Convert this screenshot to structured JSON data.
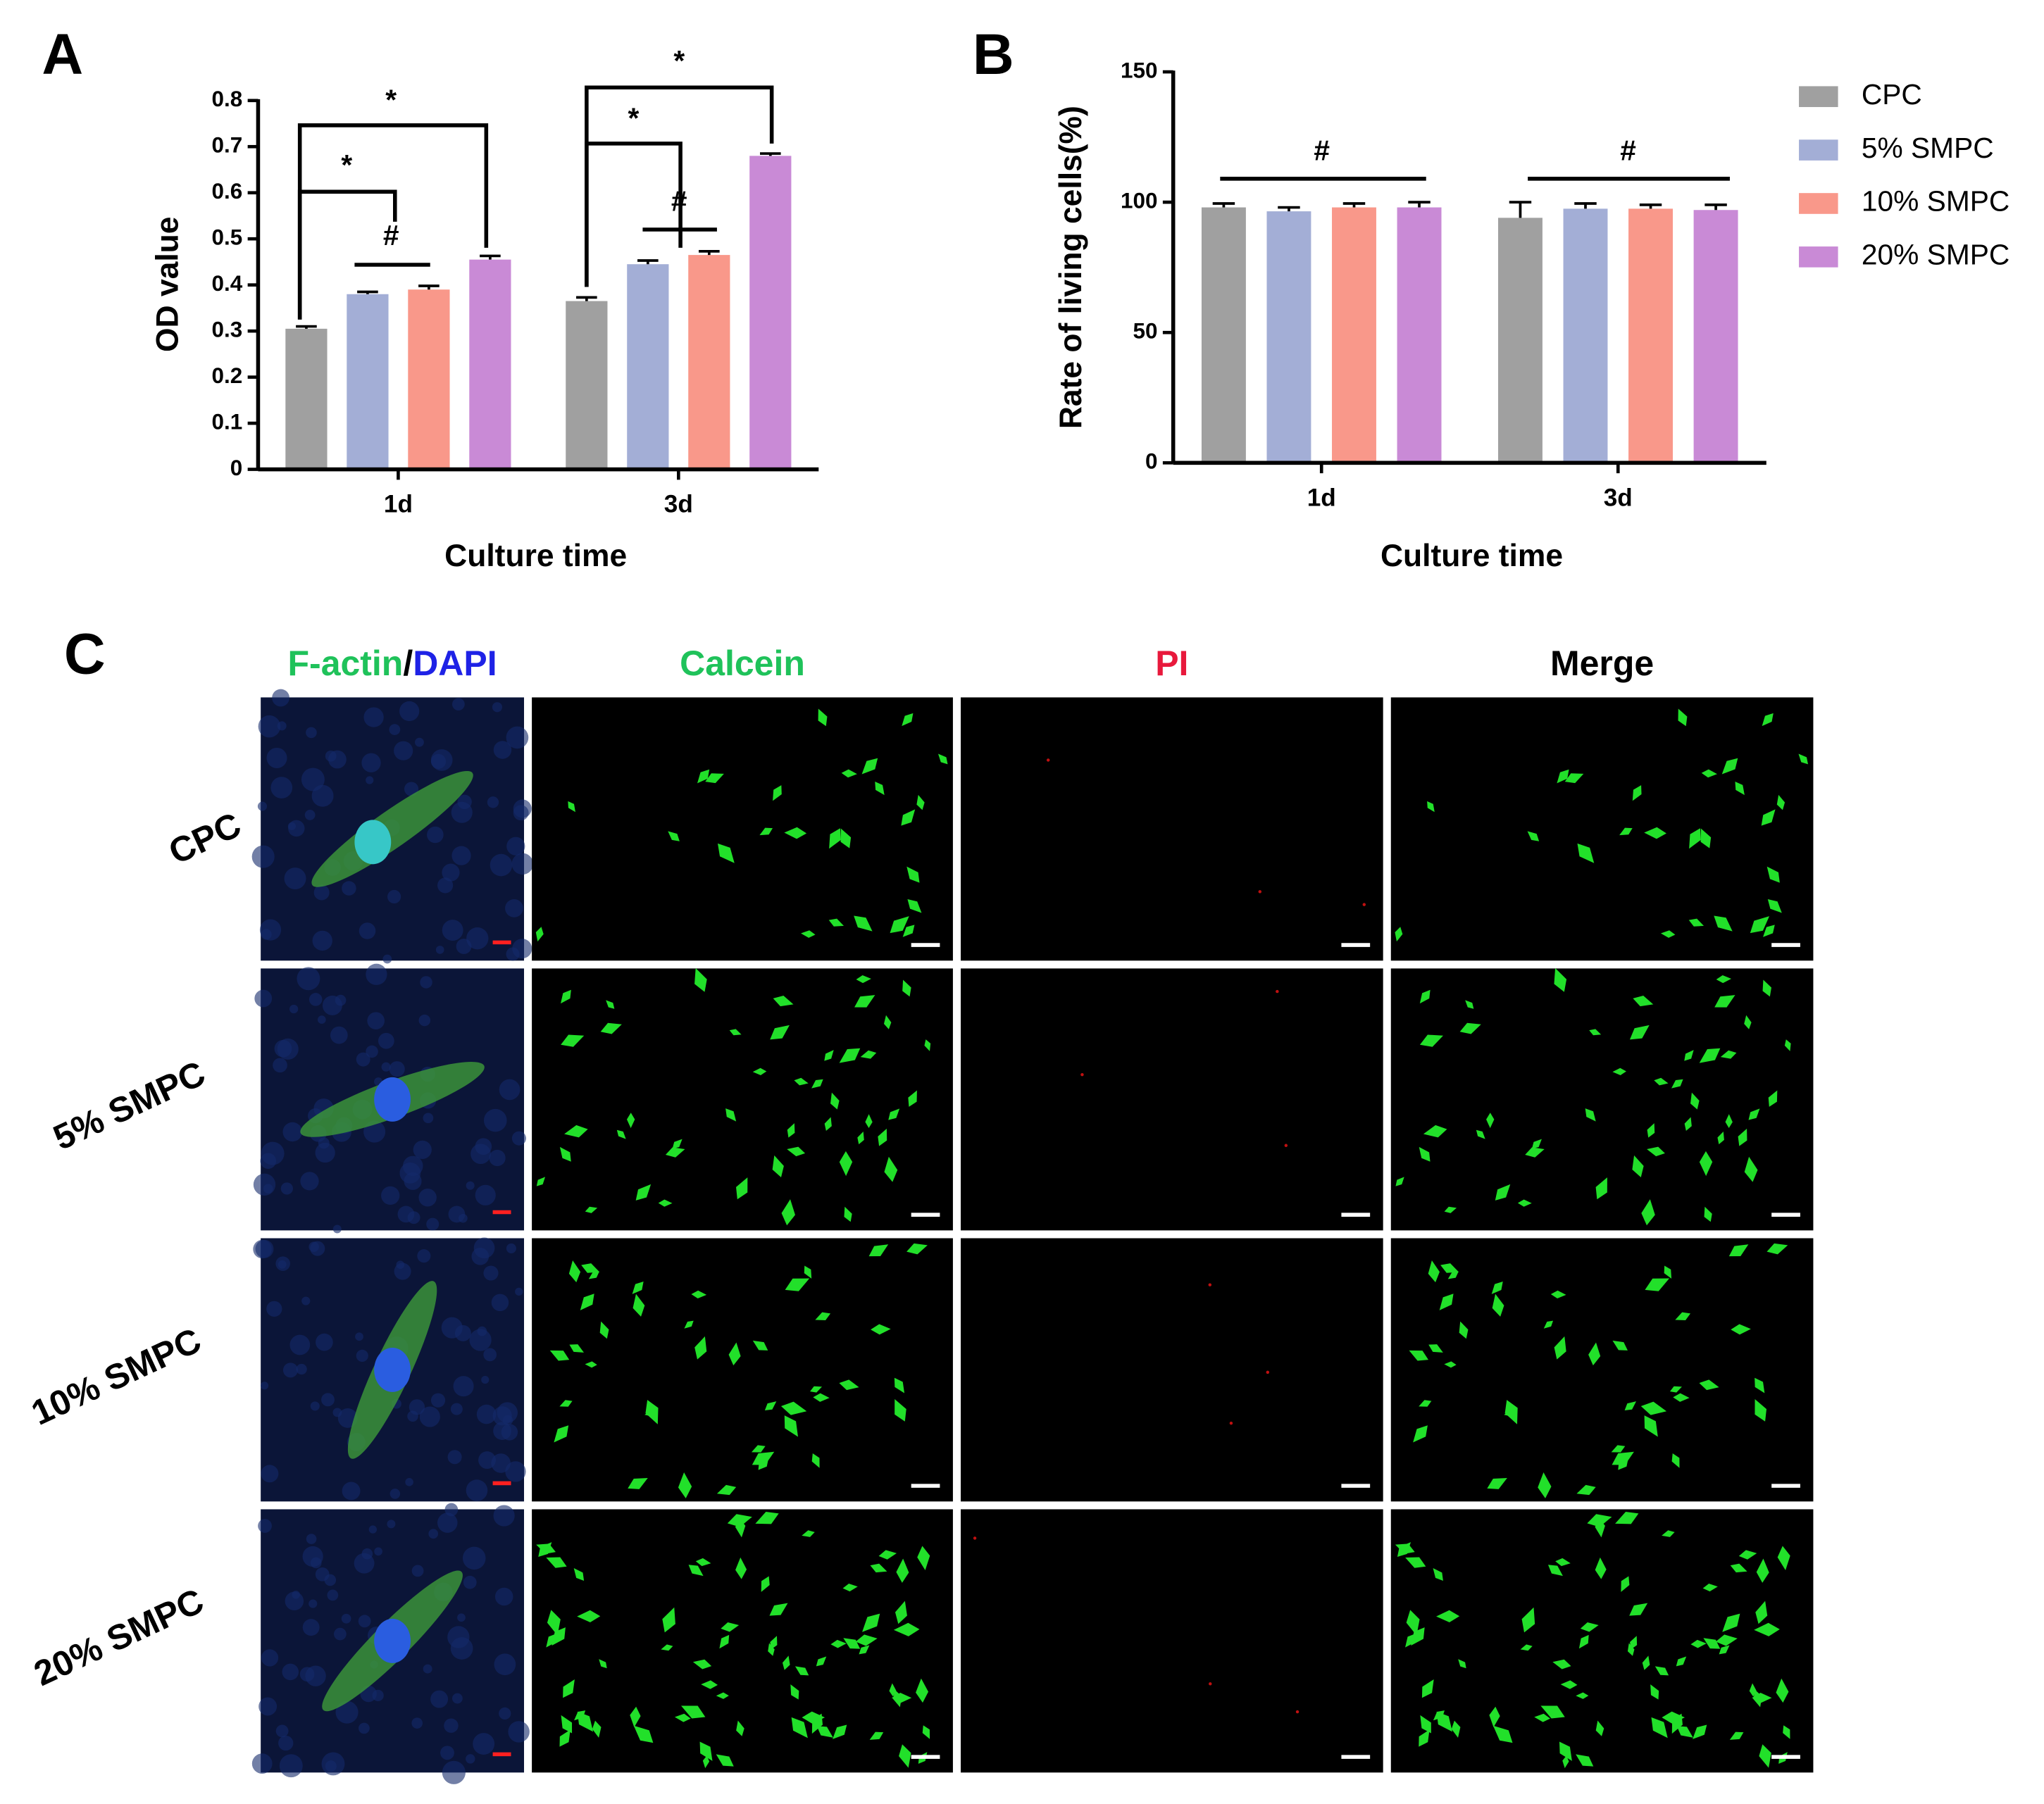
{
  "chart_data": [
    {
      "type": "bar",
      "panel_label": "A",
      "y_label": "OD value",
      "x_label": "Culture time",
      "categories": [
        "1d",
        "3d"
      ],
      "series": [
        {
          "color": "#a0a0a0",
          "values": [
            0.305,
            0.365
          ],
          "errors": [
            0.005,
            0.008
          ]
        },
        {
          "color": "#a3aed6",
          "values": [
            0.38,
            0.445
          ],
          "errors": [
            0.005,
            0.008
          ]
        },
        {
          "color": "#f9988a",
          "values": [
            0.39,
            0.465
          ],
          "errors": [
            0.008,
            0.008
          ]
        },
        {
          "color": "#c98ad6",
          "values": [
            0.455,
            0.68
          ],
          "errors": [
            0.008,
            0.005
          ]
        }
      ],
      "ylim": [
        0,
        0.8
      ],
      "yticks": [
        0,
        0.1,
        0.2,
        0.3,
        0.4,
        0.5,
        0.6,
        0.7,
        0.8
      ],
      "annotations": [
        "*",
        "*",
        "#",
        "*",
        "*",
        "#"
      ]
    },
    {
      "type": "bar",
      "panel_label": "B",
      "y_label": "Rate of living cells(%)",
      "x_label": "Culture time",
      "categories": [
        "1d",
        "3d"
      ],
      "series": [
        {
          "name": "CPC",
          "color": "#a0a0a0",
          "values": [
            98,
            94
          ],
          "errors": [
            1.5,
            6
          ]
        },
        {
          "name": "5% SMPC",
          "color": "#a3aed6",
          "values": [
            96.5,
            97.5
          ],
          "errors": [
            1.5,
            2
          ]
        },
        {
          "name": "10% SMPC",
          "color": "#f9988a",
          "values": [
            98,
            97.5
          ],
          "errors": [
            1.5,
            1.5
          ]
        },
        {
          "name": "20% SMPC",
          "color": "#c98ad6",
          "values": [
            98,
            97
          ],
          "errors": [
            2,
            2
          ]
        }
      ],
      "ylim": [
        0,
        150
      ],
      "yticks": [
        0,
        50,
        100,
        150
      ],
      "legend": "right",
      "annotations": [
        "#",
        "#"
      ]
    }
  ],
  "panel_c": {
    "panel_label": "C",
    "columns": [
      [
        "F-actin",
        "/",
        "DAPI"
      ],
      [
        "Calcein"
      ],
      [
        "PI"
      ],
      [
        "Merge"
      ]
    ],
    "rows": [
      "CPC",
      "5% SMPC",
      "10% SMPC",
      "20% SMPC"
    ]
  }
}
